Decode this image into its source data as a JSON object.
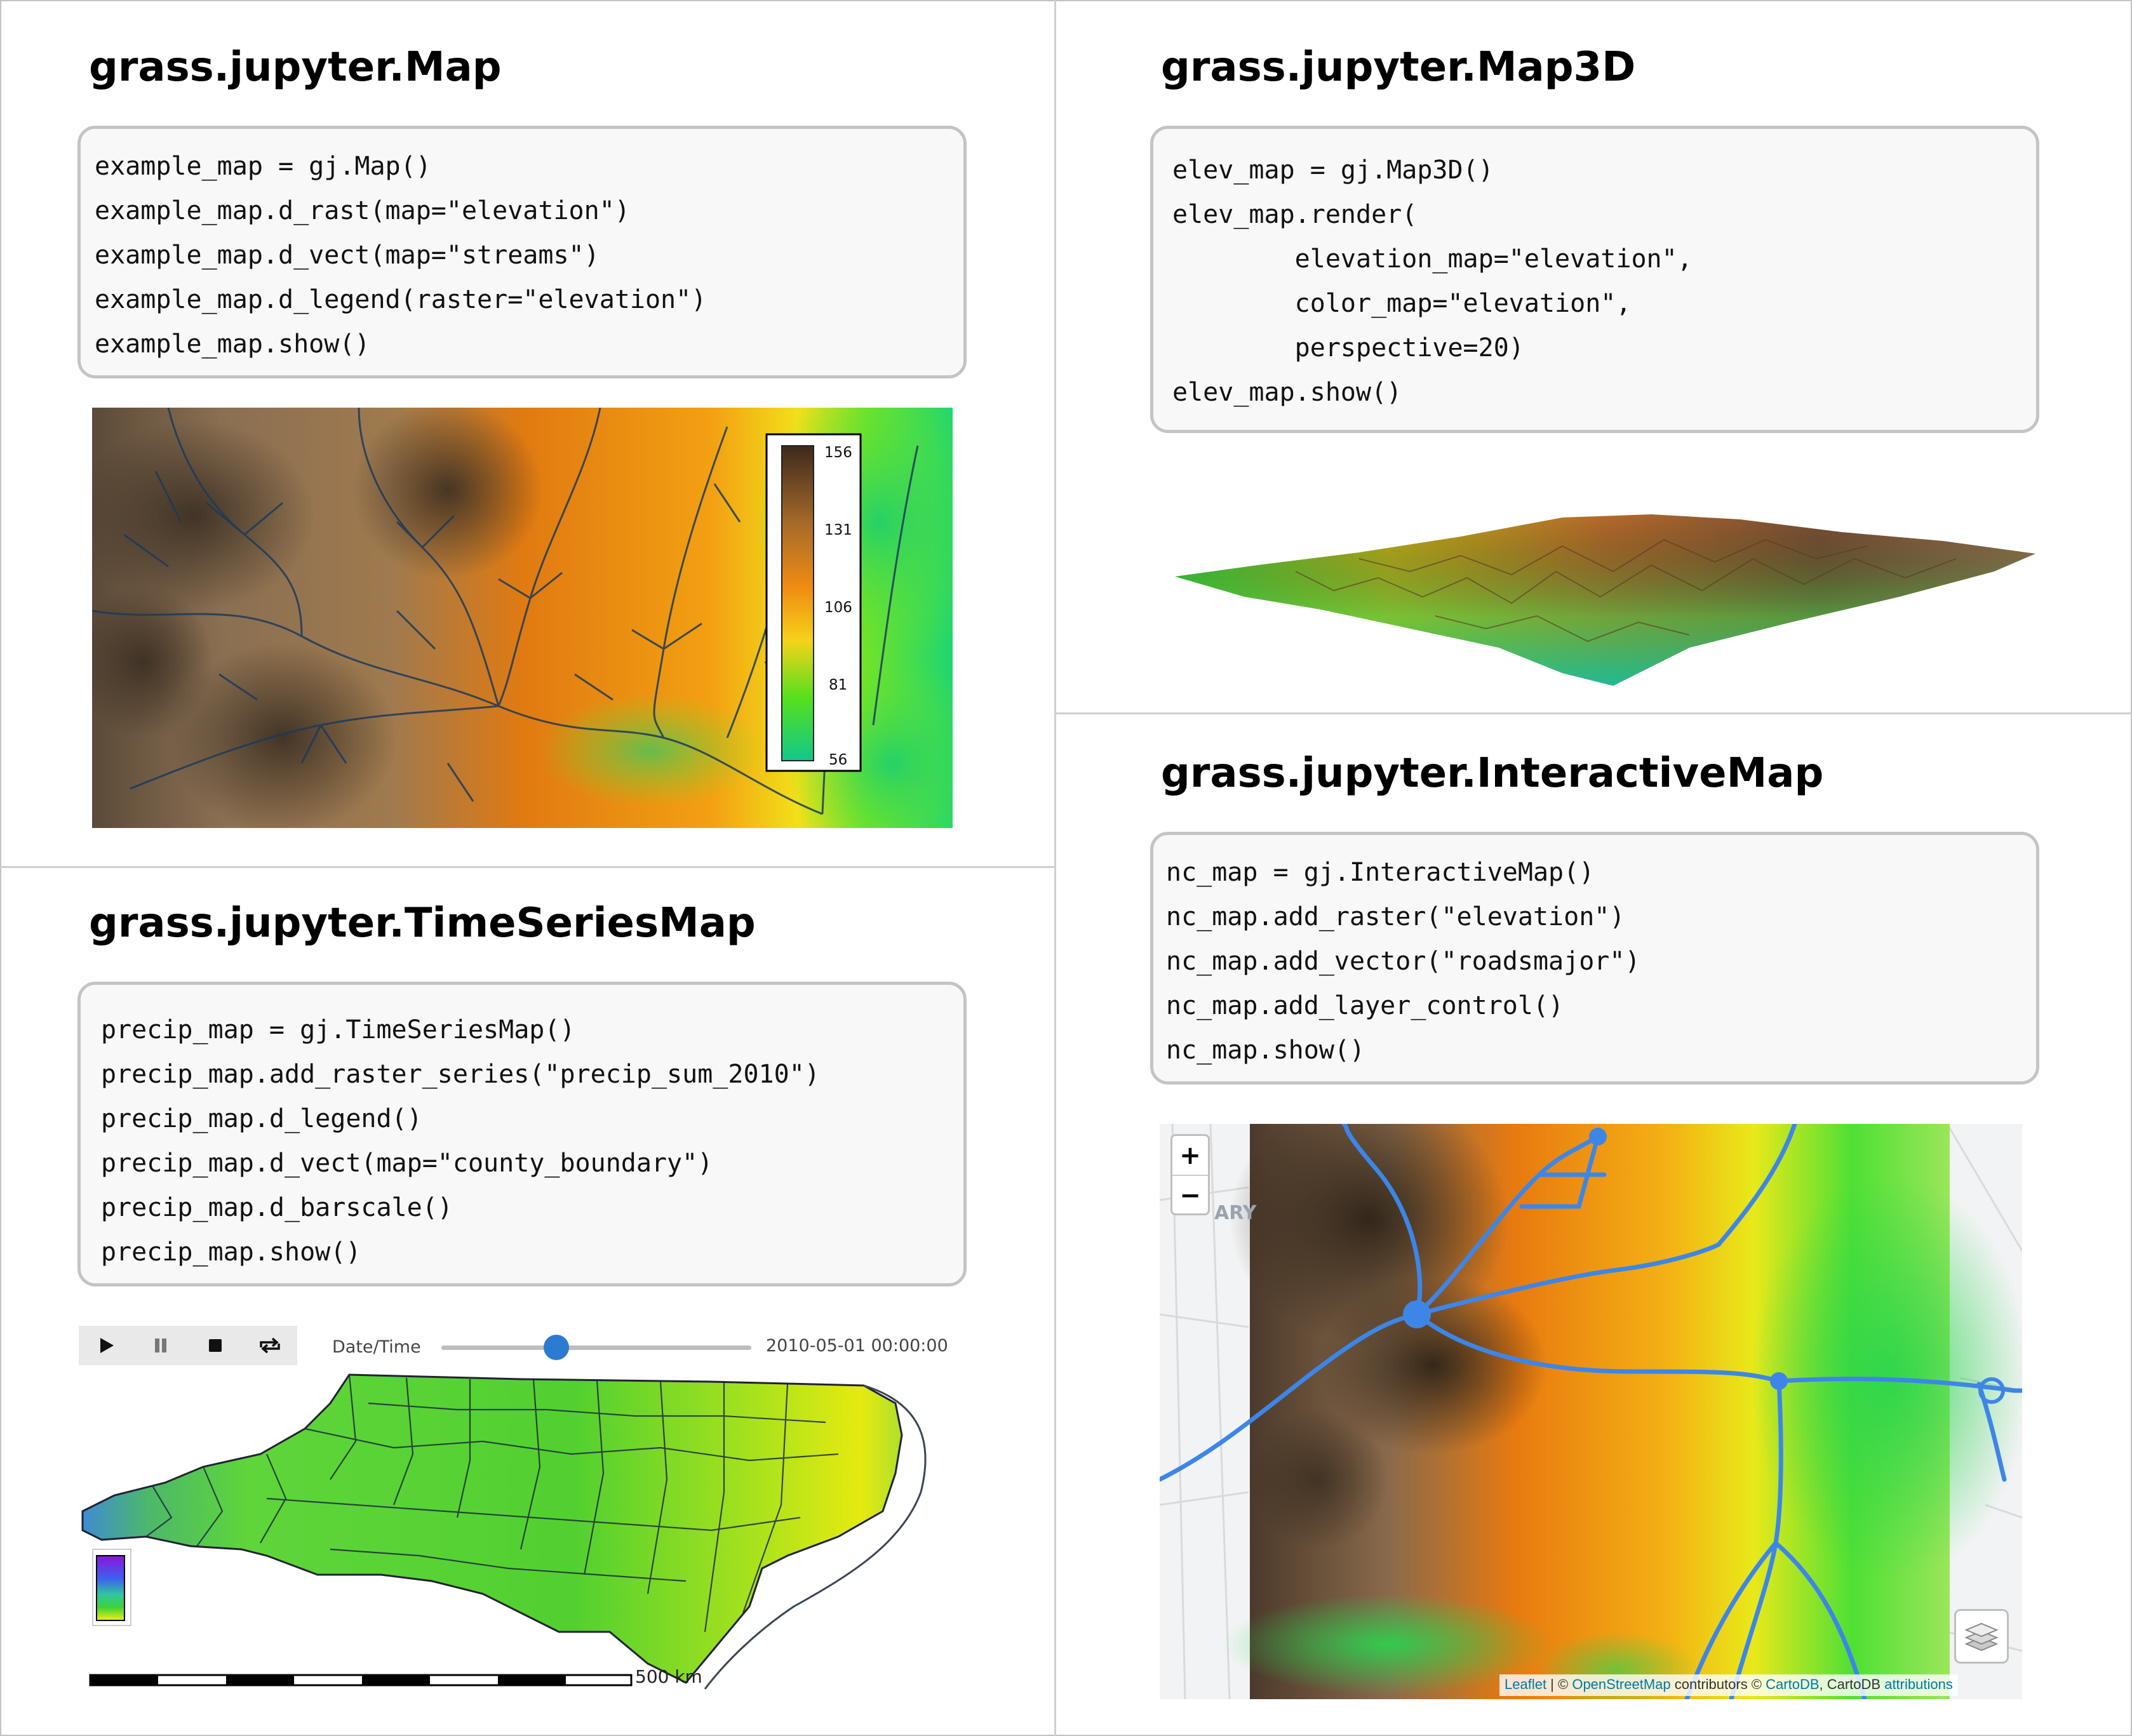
{
  "panels": {
    "map": {
      "title": "grass.jupyter.Map",
      "code": [
        "example_map = gj.Map()",
        "example_map.d_rast(map=\"elevation\")",
        "example_map.d_vect(map=\"streams\")",
        "example_map.d_legend(raster=\"elevation\")",
        "example_map.show()"
      ],
      "legend": [
        "156",
        "131",
        "106",
        "81",
        "56"
      ]
    },
    "map3d": {
      "title": "grass.jupyter.Map3D",
      "code": [
        "elev_map = gj.Map3D()",
        "elev_map.render(",
        "        elevation_map=\"elevation\",",
        "        color_map=\"elevation\",",
        "        perspective=20)",
        "elev_map.show()"
      ]
    },
    "timeseries": {
      "title": "grass.jupyter.TimeSeriesMap",
      "code": [
        "precip_map = gj.TimeSeriesMap()",
        "precip_map.add_raster_series(\"precip_sum_2010\")",
        "precip_map.d_legend()",
        "precip_map.d_vect(map=\"county_boundary\")",
        "precip_map.d_barscale()",
        "precip_map.show()"
      ],
      "controls": {
        "icons": [
          "play-icon",
          "pause-icon",
          "stop-icon",
          "loop-icon"
        ],
        "date_label": "Date/Time",
        "date_value": "2010-05-01 00:00:00",
        "slider_fraction": 0.37,
        "accent": "#2b7bd3"
      },
      "scalebar_label": "500 km"
    },
    "interactive": {
      "title": "grass.jupyter.InteractiveMap",
      "code": [
        "nc_map = gj.InteractiveMap()",
        "nc_map.add_raster(\"elevation\")",
        "nc_map.add_vector(\"roadsmajor\")",
        "nc_map.add_layer_control()",
        "nc_map.show()"
      ],
      "zoom_in": "+",
      "zoom_out": "−",
      "basemap_fragment": "ARY",
      "attribution": {
        "leaflet": "Leaflet",
        "sep": " | © ",
        "osm": "OpenStreetMap",
        "contrib": " contributors © ",
        "cartodb": "CartoDB",
        "cartodb2": ", CartoDB ",
        "attributions": "attributions"
      },
      "road_color": "#3d86e8"
    }
  }
}
